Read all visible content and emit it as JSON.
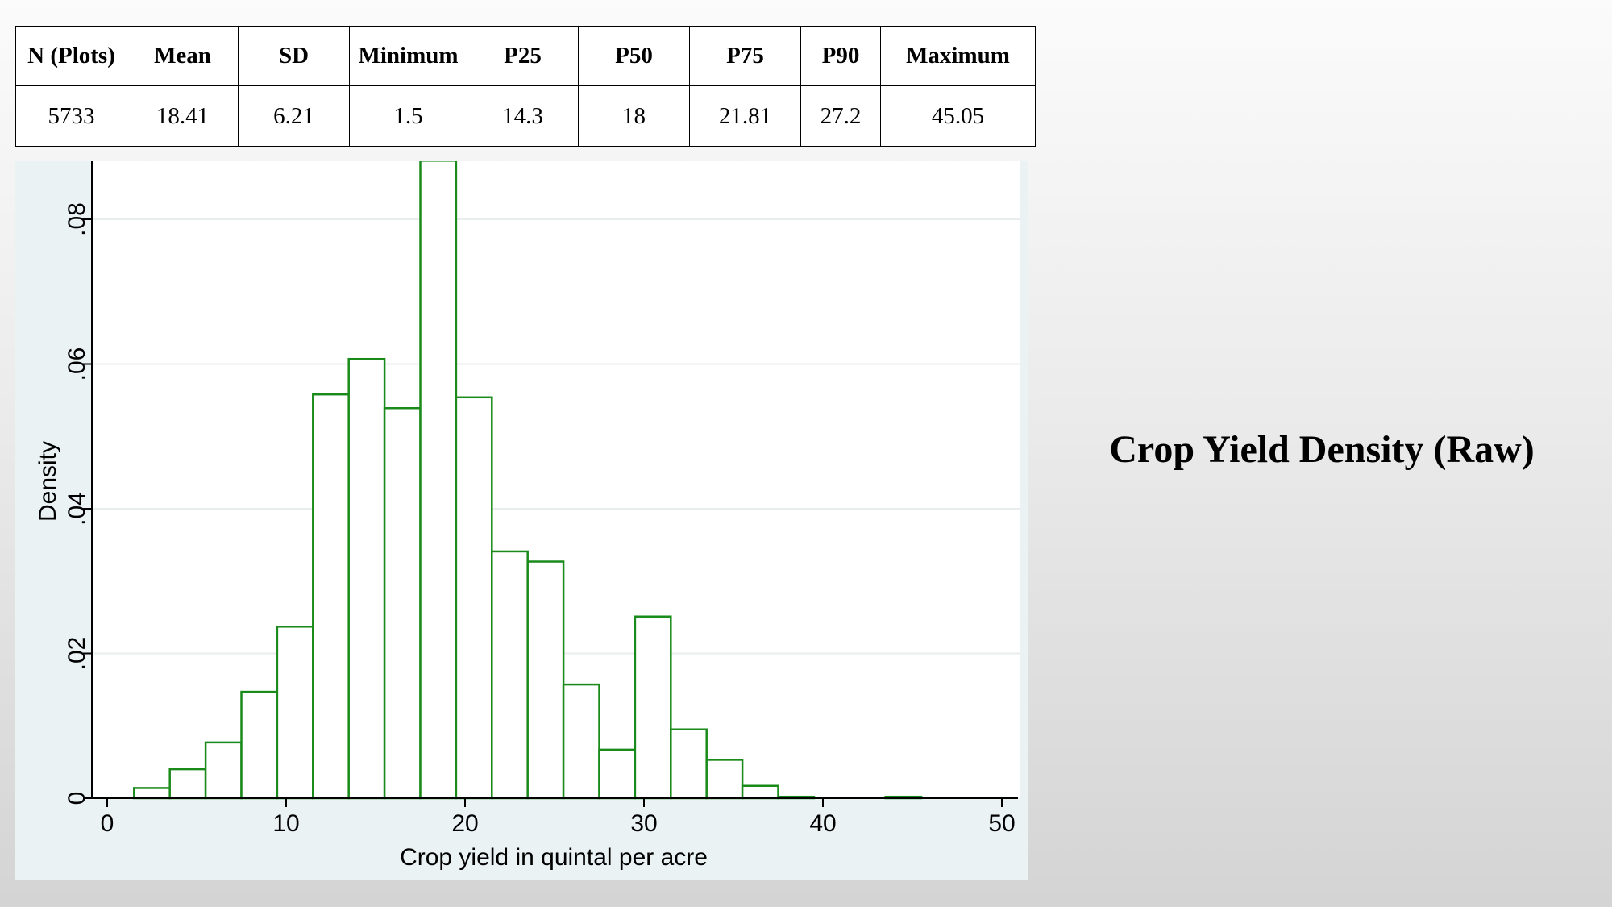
{
  "slide": {
    "title": "Crop Yield Density (Raw)"
  },
  "summary_table": {
    "headers": [
      "N (Plots)",
      "Mean",
      "SD",
      "Minimum",
      "P25",
      "P50",
      "P75",
      "P90",
      "Maximum"
    ],
    "values": [
      "5733",
      "18.41",
      "6.21",
      "1.5",
      "14.3",
      "18",
      "21.81",
      "27.2",
      "45.05"
    ]
  },
  "chart_data": {
    "type": "bar",
    "subtype": "histogram",
    "title": "",
    "xlabel": "Crop yield in quintal per acre",
    "ylabel": "Density",
    "xlim": [
      0,
      50
    ],
    "ylim": [
      0,
      0.09
    ],
    "xticks": [
      0,
      10,
      20,
      30,
      40,
      50
    ],
    "xtick_labels": [
      "0",
      "10",
      "20",
      "30",
      "40",
      "50"
    ],
    "yticks": [
      0,
      0.02,
      0.04,
      0.06,
      0.08
    ],
    "ytick_labels": [
      "0",
      ".02",
      ".04",
      ".06",
      ".08"
    ],
    "grid": true,
    "bar_outline_color": "#1a8a1a",
    "bar_fill_color": "#ffffff",
    "bins": [
      {
        "x0": 1.5,
        "x1": 3.5,
        "density": 0.0014
      },
      {
        "x0": 3.5,
        "x1": 5.5,
        "density": 0.004
      },
      {
        "x0": 5.5,
        "x1": 7.5,
        "density": 0.0077
      },
      {
        "x0": 7.5,
        "x1": 9.5,
        "density": 0.0147
      },
      {
        "x0": 9.5,
        "x1": 11.5,
        "density": 0.0237
      },
      {
        "x0": 11.5,
        "x1": 13.5,
        "density": 0.0558
      },
      {
        "x0": 13.5,
        "x1": 15.5,
        "density": 0.0607
      },
      {
        "x0": 15.5,
        "x1": 17.5,
        "density": 0.0539
      },
      {
        "x0": 17.5,
        "x1": 19.5,
        "density": 0.0881
      },
      {
        "x0": 19.5,
        "x1": 21.5,
        "density": 0.0554
      },
      {
        "x0": 21.5,
        "x1": 23.5,
        "density": 0.0341
      },
      {
        "x0": 23.5,
        "x1": 25.5,
        "density": 0.0327
      },
      {
        "x0": 25.5,
        "x1": 27.5,
        "density": 0.0157
      },
      {
        "x0": 27.5,
        "x1": 29.5,
        "density": 0.0067
      },
      {
        "x0": 29.5,
        "x1": 31.5,
        "density": 0.0251
      },
      {
        "x0": 31.5,
        "x1": 33.5,
        "density": 0.0095
      },
      {
        "x0": 33.5,
        "x1": 35.5,
        "density": 0.0053
      },
      {
        "x0": 35.5,
        "x1": 37.5,
        "density": 0.0017
      },
      {
        "x0": 37.5,
        "x1": 39.5,
        "density": 0.0002
      },
      {
        "x0": 39.5,
        "x1": 41.5,
        "density": 0.0
      },
      {
        "x0": 41.5,
        "x1": 43.5,
        "density": 0.0
      },
      {
        "x0": 43.5,
        "x1": 45.5,
        "density": 0.0002
      }
    ]
  }
}
